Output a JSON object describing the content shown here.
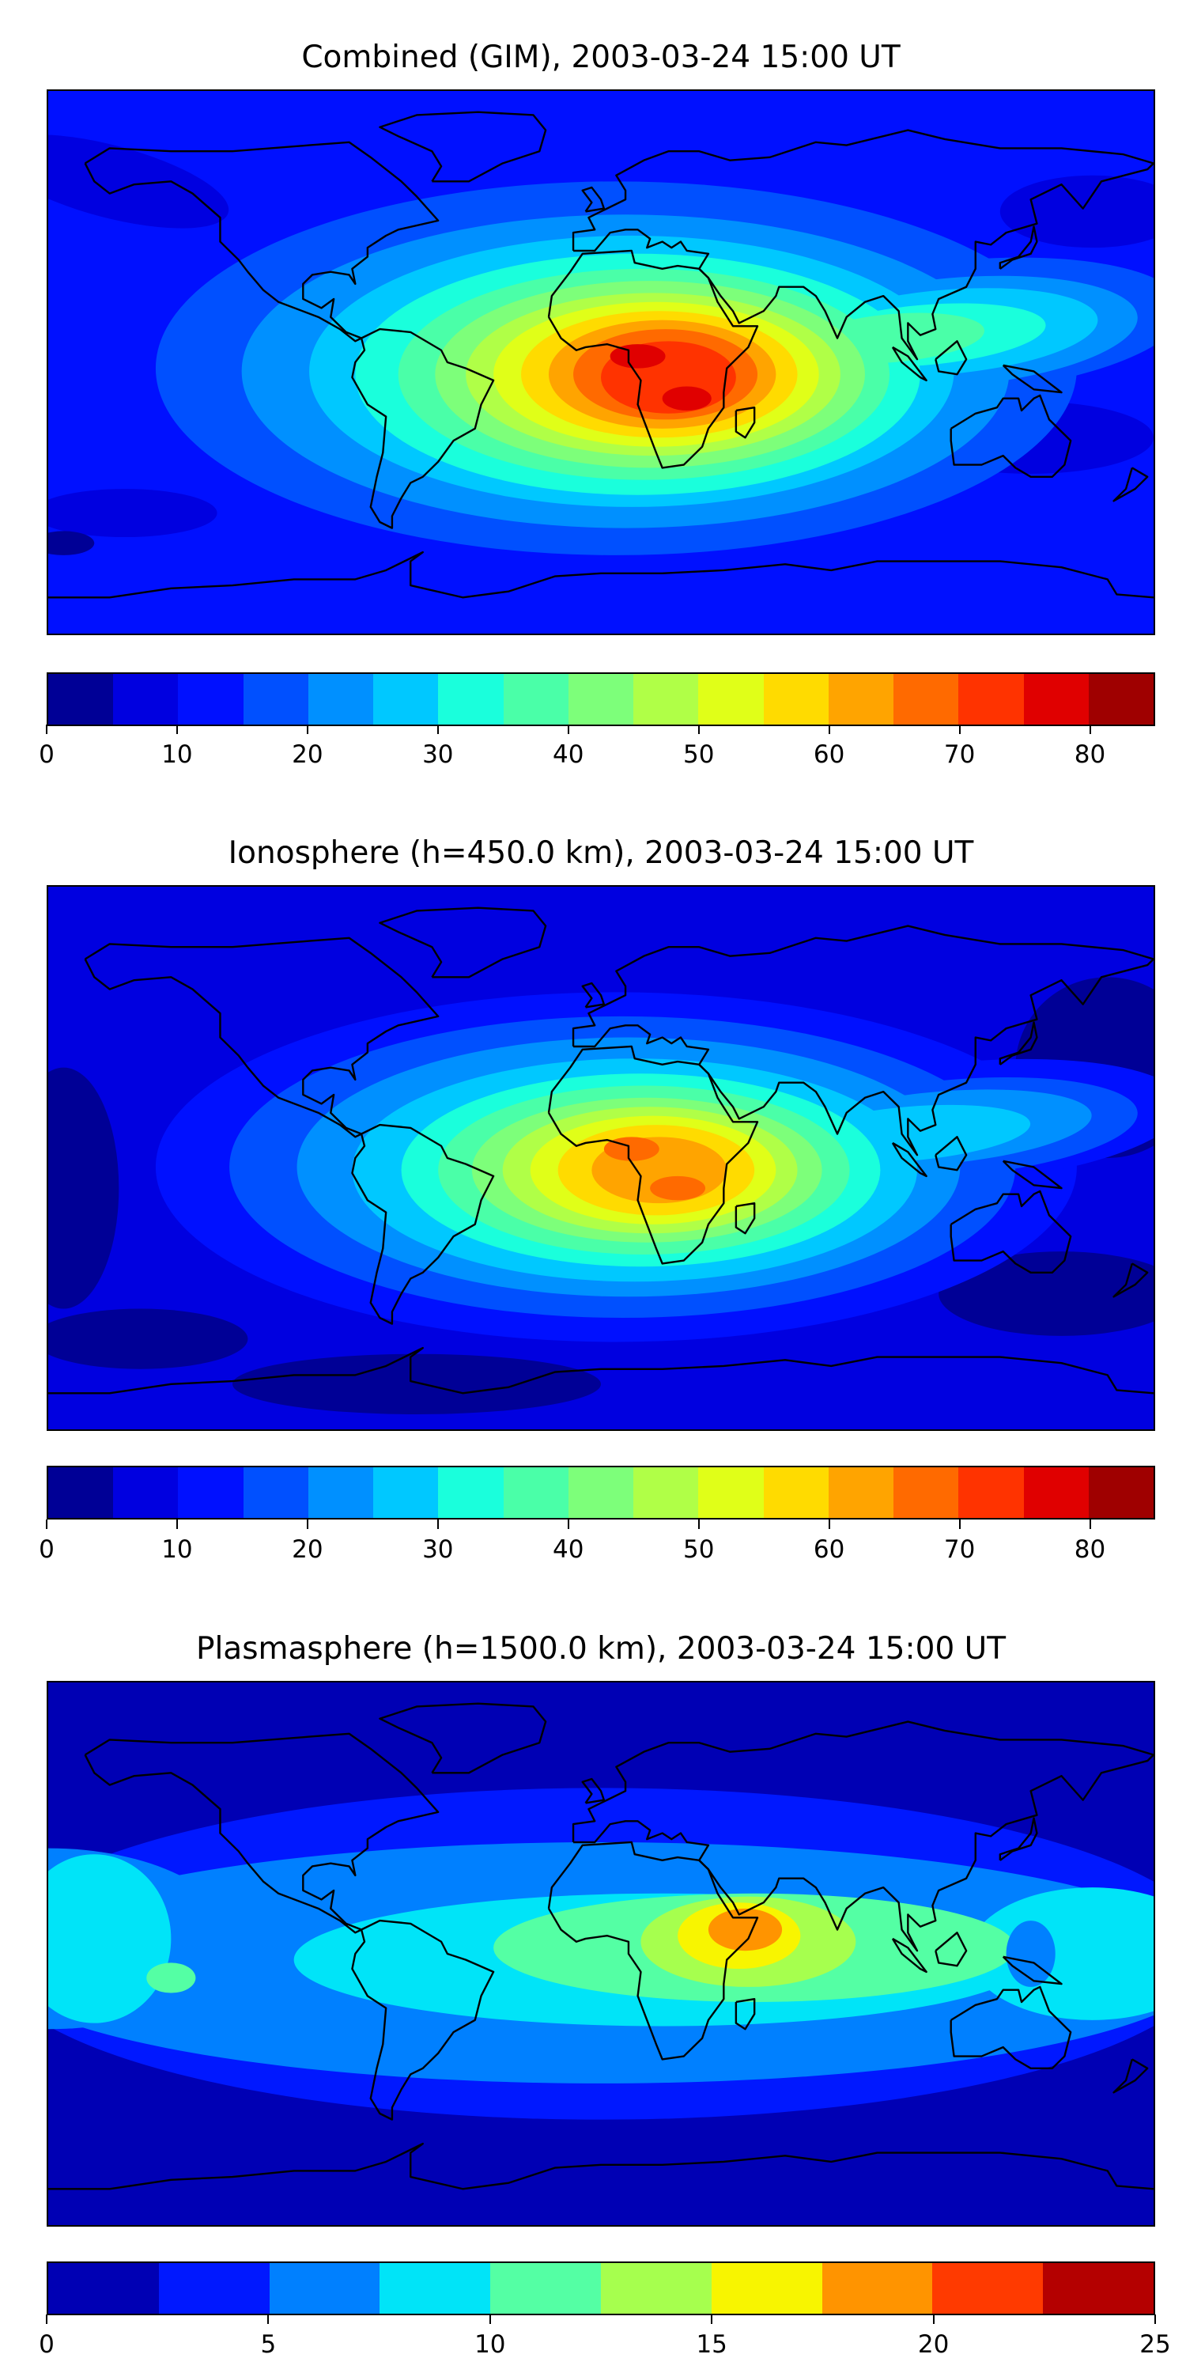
{
  "chart_data": [
    {
      "type": "heatmap",
      "title": "Combined (GIM), 2003-03-24 15:00 UT",
      "projection": "equirectangular world map with coastlines",
      "colorbar": {
        "range": [
          0,
          85
        ],
        "levels": [
          0,
          5,
          10,
          15,
          20,
          25,
          30,
          35,
          40,
          45,
          50,
          55,
          60,
          65,
          70,
          75,
          80,
          85
        ],
        "colors": [
          "#000096",
          "#0000e0",
          "#0010ff",
          "#0050ff",
          "#0090ff",
          "#00c8ff",
          "#1affdc",
          "#4affa8",
          "#7dff7a",
          "#b0ff47",
          "#e0ff18",
          "#ffdb00",
          "#ffa400",
          "#ff6a00",
          "#ff3300",
          "#e00000",
          "#9f0000"
        ],
        "ticks": [
          0,
          10,
          20,
          30,
          40,
          50,
          60,
          70,
          80
        ],
        "tick_labels": [
          "0",
          "10",
          "20",
          "30",
          "40",
          "50",
          "60",
          "70",
          "80"
        ]
      },
      "field_summary": {
        "background_level": "10-15",
        "peak_level": "75-80",
        "peak_region": "equatorial Africa / South Atlantic"
      }
    },
    {
      "type": "heatmap",
      "title": "Ionosphere  (h=450.0 km), 2003-03-24 15:00 UT",
      "projection": "equirectangular world map with coastlines",
      "colorbar": {
        "range": [
          0,
          85
        ],
        "levels": [
          0,
          5,
          10,
          15,
          20,
          25,
          30,
          35,
          40,
          45,
          50,
          55,
          60,
          65,
          70,
          75,
          80,
          85
        ],
        "colors": [
          "#000096",
          "#0000e0",
          "#0010ff",
          "#0050ff",
          "#0090ff",
          "#00c8ff",
          "#1affdc",
          "#4affa8",
          "#7dff7a",
          "#b0ff47",
          "#e0ff18",
          "#ffdb00",
          "#ffa400",
          "#ff6a00",
          "#ff3300",
          "#e00000",
          "#9f0000"
        ],
        "ticks": [
          0,
          10,
          20,
          30,
          40,
          50,
          60,
          70,
          80
        ],
        "tick_labels": [
          "0",
          "10",
          "20",
          "30",
          "40",
          "50",
          "60",
          "70",
          "80"
        ]
      },
      "field_summary": {
        "background_level": "5-10",
        "peak_level": "65-70",
        "peak_region": "equatorial Africa / South Atlantic"
      }
    },
    {
      "type": "heatmap",
      "title": "Plasmasphere (h=1500.0 km), 2003-03-24 15:00 UT",
      "projection": "equirectangular world map with coastlines",
      "colorbar": {
        "range": [
          0,
          25
        ],
        "levels": [
          0,
          2.5,
          5,
          7.5,
          10,
          12.5,
          15,
          17.5,
          20,
          22.5,
          25
        ],
        "colors": [
          "#0000b4",
          "#0018ff",
          "#0080ff",
          "#00e4f8",
          "#54ffa4",
          "#a6ff4e",
          "#f8f500",
          "#ff9400",
          "#ff3a00",
          "#b40000"
        ],
        "ticks": [
          0,
          5,
          10,
          15,
          20,
          25
        ],
        "tick_labels": [
          "0",
          "5",
          "10",
          "15",
          "20",
          "25"
        ]
      },
      "field_summary": {
        "background_level": "0-2.5",
        "peak_level": "17.5-20",
        "peak_region": "Horn of Africa / Arabian Sea"
      }
    }
  ]
}
